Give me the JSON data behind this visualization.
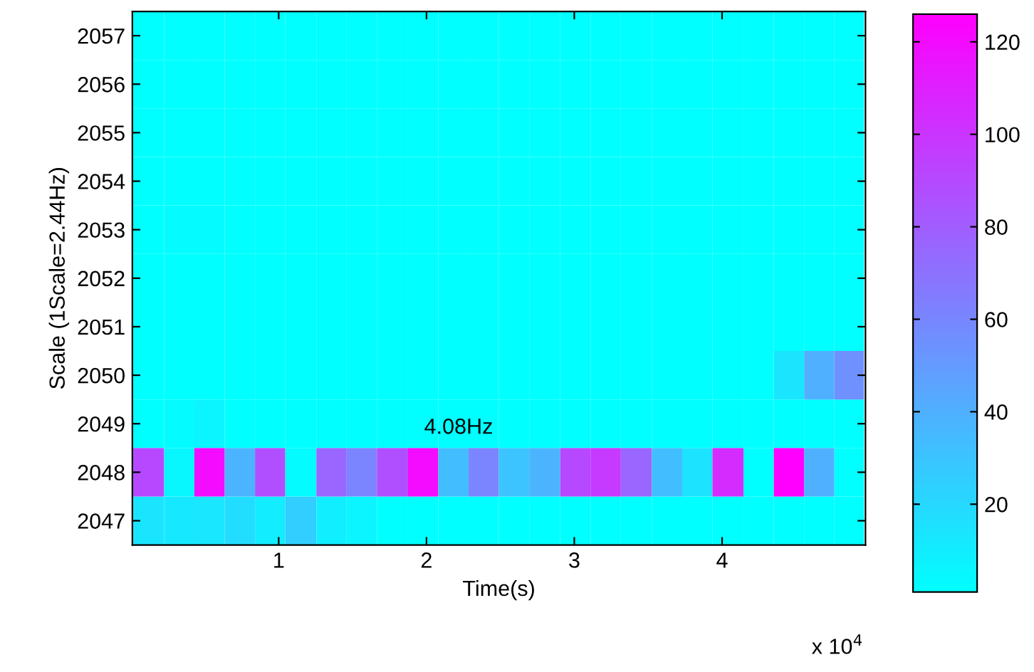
{
  "chart_data": {
    "type": "heatmap",
    "xlabel": "Time(s)",
    "ylabel": "Scale (1Scale=2.44Hz)",
    "x": [
      0.12,
      0.33,
      0.53,
      0.74,
      0.94,
      1.15,
      1.36,
      1.56,
      1.77,
      1.98,
      2.18,
      2.39,
      2.59,
      2.8,
      3.01,
      3.21,
      3.42,
      3.63,
      3.83,
      4.04,
      4.25,
      4.45,
      4.66,
      4.86
    ],
    "xlim": [
      0.01,
      4.97
    ],
    "xticks": [
      1,
      2,
      3,
      4
    ],
    "y_categories": [
      "2057",
      "2056",
      "2055",
      "2054",
      "2053",
      "2052",
      "2051",
      "2050",
      "2049",
      "2048",
      "2047"
    ],
    "cells": [
      [
        1,
        1,
        1,
        1,
        1,
        1,
        1,
        1,
        1,
        1,
        1,
        1,
        1,
        1,
        1,
        1,
        1,
        1,
        1,
        1,
        1,
        1,
        1,
        1
      ],
      [
        1,
        1,
        1,
        1,
        1,
        1,
        1,
        1,
        1,
        1,
        1,
        1,
        1,
        1,
        1,
        1,
        1,
        1,
        1,
        1,
        1,
        1,
        1,
        1
      ],
      [
        1,
        1,
        1,
        1,
        1,
        1,
        1,
        1,
        1,
        1,
        1,
        1,
        1,
        1,
        1,
        1,
        1,
        1,
        1,
        1,
        1,
        1,
        1,
        1
      ],
      [
        1,
        1,
        1,
        1,
        1,
        1,
        1,
        1,
        1,
        1,
        1,
        1,
        1,
        1,
        1,
        1,
        1,
        1,
        1,
        1,
        1,
        1,
        1,
        1
      ],
      [
        1,
        3,
        3,
        1,
        1,
        1,
        1,
        1,
        1,
        1,
        1,
        1,
        1,
        1,
        1,
        1,
        1,
        1,
        1,
        1,
        1,
        1,
        1,
        1
      ],
      [
        1,
        1,
        1,
        1,
        1,
        1,
        1,
        1,
        1,
        1,
        1,
        1,
        1,
        1,
        1,
        1,
        1,
        1,
        1,
        1,
        1,
        1,
        1,
        1
      ],
      [
        1,
        1,
        1,
        1,
        1,
        1,
        1,
        1,
        1,
        1,
        1,
        1,
        1,
        1,
        1,
        1,
        1,
        1,
        1,
        1,
        1,
        1,
        1,
        1
      ],
      [
        1,
        1,
        1,
        1,
        1,
        1,
        1,
        1,
        1,
        1,
        1,
        1,
        1,
        1,
        1,
        1,
        1,
        1,
        1,
        1,
        1,
        14,
        40,
        55
      ],
      [
        1,
        3,
        6,
        1,
        1,
        1,
        1,
        1,
        1,
        1,
        1,
        1,
        1,
        1,
        1,
        1,
        1,
        1,
        1,
        1,
        1,
        1,
        1,
        1
      ],
      [
        90,
        5,
        120,
        38,
        87,
        3,
        76,
        61,
        87,
        120,
        33,
        61,
        30,
        38,
        90,
        98,
        76,
        33,
        15,
        105,
        1,
        126,
        40,
        1
      ],
      [
        14,
        12,
        13,
        18,
        10,
        25,
        9,
        6,
        1,
        1,
        1,
        1,
        1,
        1,
        1,
        1,
        1,
        1,
        1,
        1,
        1,
        1,
        1,
        1
      ]
    ],
    "clim": [
      1,
      126
    ],
    "cticks": [
      20,
      40,
      60,
      80,
      100,
      120
    ],
    "annotations": [
      "4.08Hz",
      "x 10$^{4}$"
    ],
    "grid": false
  }
}
